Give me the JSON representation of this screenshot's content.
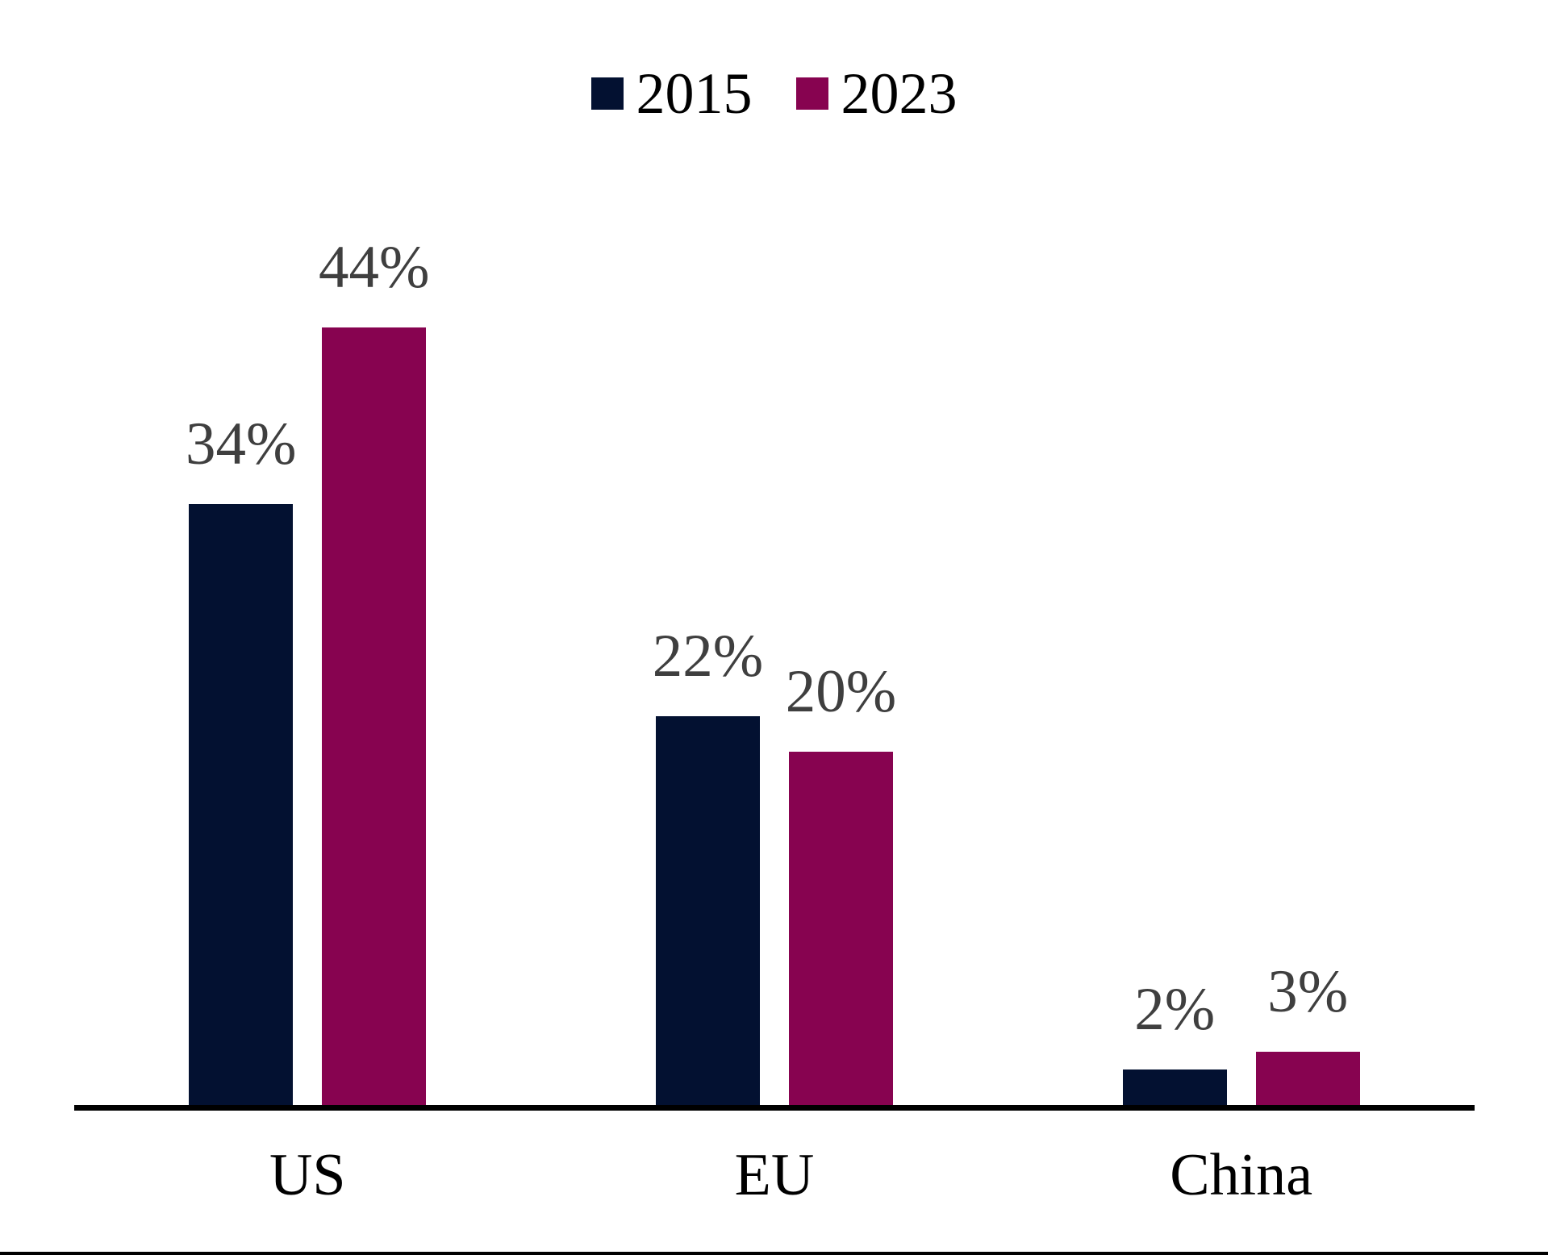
{
  "chart_data": {
    "type": "bar",
    "title": "",
    "categories": [
      "US",
      "EU",
      "China"
    ],
    "series": [
      {
        "name": "2015",
        "color": "#031131",
        "values": [
          34,
          22,
          2
        ],
        "labels": [
          "34%",
          "22%",
          "2%"
        ]
      },
      {
        "name": "2023",
        "color": "#870350",
        "values": [
          44,
          20,
          3
        ],
        "labels": [
          "44%",
          "20%",
          "3%"
        ]
      }
    ],
    "unit": "%",
    "ylim": [
      0,
      46
    ],
    "grid": false,
    "y_axis_visible": false,
    "data_labels": true,
    "legend_position": "top",
    "value_label_color": "#3F3F3F",
    "category_label_color": "#000000",
    "axis_line_color": "#000000",
    "background_color": "#FFFFFF"
  }
}
